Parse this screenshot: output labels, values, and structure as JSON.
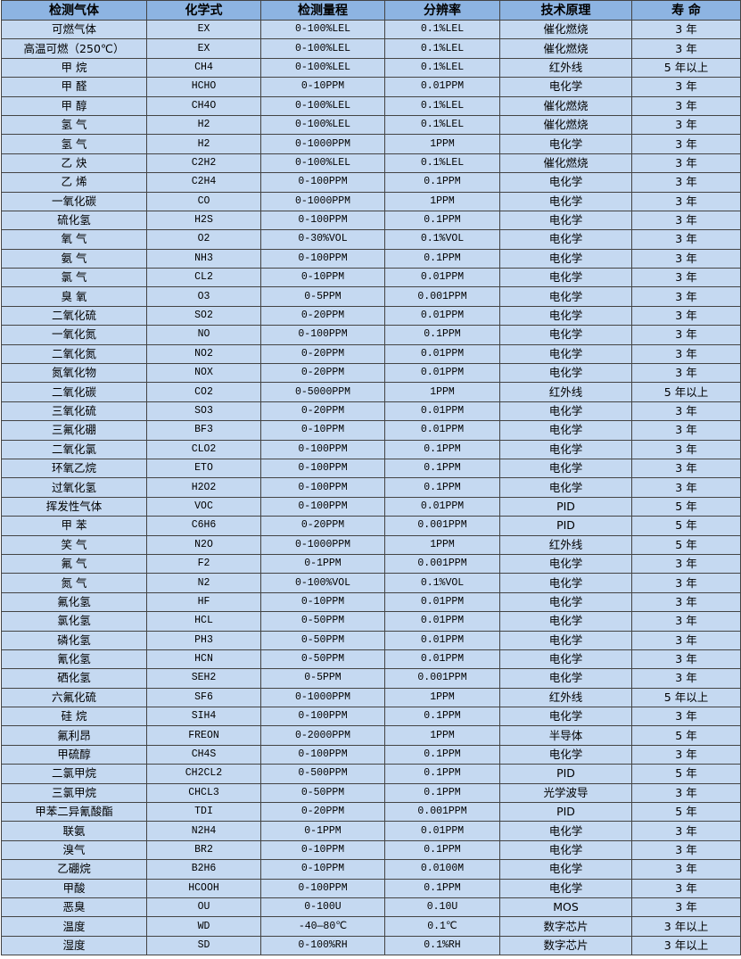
{
  "table": {
    "headers": [
      "检测气体",
      "化学式",
      "检测量程",
      "分辨率",
      "技术原理",
      "寿 命"
    ],
    "rows": [
      [
        "可燃气体",
        "EX",
        "0-100%LEL",
        "0.1%LEL",
        "催化燃烧",
        "3 年"
      ],
      [
        "高温可燃（250℃）",
        "EX",
        "0-100%LEL",
        "0.1%LEL",
        "催化燃烧",
        "3 年"
      ],
      [
        "甲 烷",
        "CH4",
        "0-100%LEL",
        "0.1%LEL",
        "红外线",
        "5 年以上"
      ],
      [
        "甲 醛",
        "HCHO",
        "0-10PPM",
        "0.01PPM",
        "电化学",
        "3 年"
      ],
      [
        "甲 醇",
        "CH4O",
        "0-100%LEL",
        "0.1%LEL",
        "催化燃烧",
        "3 年"
      ],
      [
        "氢 气",
        "H2",
        "0-100%LEL",
        "0.1%LEL",
        "催化燃烧",
        "3 年"
      ],
      [
        "氢 气",
        "H2",
        "0-1000PPM",
        "1PPM",
        "电化学",
        "3 年"
      ],
      [
        "乙 炔",
        "C2H2",
        "0-100%LEL",
        "0.1%LEL",
        "催化燃烧",
        "3 年"
      ],
      [
        "乙 烯",
        "C2H4",
        "0-100PPM",
        "0.1PPM",
        "电化学",
        "3 年"
      ],
      [
        "一氧化碳",
        "CO",
        "0-1000PPM",
        "1PPM",
        "电化学",
        "3 年"
      ],
      [
        "硫化氢",
        "H2S",
        "0-100PPM",
        "0.1PPM",
        "电化学",
        "3 年"
      ],
      [
        "氧 气",
        "O2",
        "0-30%VOL",
        "0.1%VOL",
        "电化学",
        "3 年"
      ],
      [
        "氨 气",
        "NH3",
        "0-100PPM",
        "0.1PPM",
        "电化学",
        "3 年"
      ],
      [
        "氯 气",
        "CL2",
        "0-10PPM",
        "0.01PPM",
        "电化学",
        "3 年"
      ],
      [
        "臭 氧",
        "O3",
        "0-5PPM",
        "0.001PPM",
        "电化学",
        "3 年"
      ],
      [
        "二氧化硫",
        "SO2",
        "0-20PPM",
        "0.01PPM",
        "电化学",
        "3 年"
      ],
      [
        "一氧化氮",
        "NO",
        "0-100PPM",
        "0.1PPM",
        "电化学",
        "3 年"
      ],
      [
        "二氧化氮",
        "NO2",
        "0-20PPM",
        "0.01PPM",
        "电化学",
        "3 年"
      ],
      [
        "氮氧化物",
        "NOX",
        "0-20PPM",
        "0.01PPM",
        "电化学",
        "3 年"
      ],
      [
        "二氧化碳",
        "CO2",
        "0-5000PPM",
        "1PPM",
        "红外线",
        "5 年以上"
      ],
      [
        "三氧化硫",
        "SO3",
        "0-20PPM",
        "0.01PPM",
        "电化学",
        "3 年"
      ],
      [
        "三氟化硼",
        "BF3",
        "0-10PPM",
        "0.01PPM",
        "电化学",
        "3 年"
      ],
      [
        "二氧化氯",
        "CLO2",
        "0-100PPM",
        "0.1PPM",
        "电化学",
        "3 年"
      ],
      [
        "环氧乙烷",
        "ETO",
        "0-100PPM",
        "0.1PPM",
        "电化学",
        "3 年"
      ],
      [
        "过氧化氢",
        "H2O2",
        "0-100PPM",
        "0.1PPM",
        "电化学",
        "3 年"
      ],
      [
        "挥发性气体",
        "VOC",
        "0-100PPM",
        "0.01PPM",
        "PID",
        "5 年"
      ],
      [
        "甲 苯",
        "C6H6",
        "0-20PPM",
        "0.001PPM",
        "PID",
        "5 年"
      ],
      [
        "笑 气",
        "N2O",
        "0-1000PPM",
        "1PPM",
        "红外线",
        "5 年"
      ],
      [
        "氟 气",
        "F2",
        "0-1PPM",
        "0.001PPM",
        "电化学",
        "3 年"
      ],
      [
        "氮 气",
        "N2",
        "0-100%VOL",
        "0.1%VOL",
        "电化学",
        "3 年"
      ],
      [
        "氟化氢",
        "HF",
        "0-10PPM",
        "0.01PPM",
        "电化学",
        "3 年"
      ],
      [
        "氯化氢",
        "HCL",
        "0-50PPM",
        "0.01PPM",
        "电化学",
        "3 年"
      ],
      [
        "磷化氢",
        "PH3",
        "0-50PPM",
        "0.01PPM",
        "电化学",
        "3 年"
      ],
      [
        "氰化氢",
        "HCN",
        "0-50PPM",
        "0.01PPM",
        "电化学",
        "3 年"
      ],
      [
        "硒化氢",
        "SEH2",
        "0-5PPM",
        "0.001PPM",
        "电化学",
        "3 年"
      ],
      [
        "六氟化硫",
        "SF6",
        "0-1000PPM",
        "1PPM",
        "红外线",
        "5 年以上"
      ],
      [
        "硅 烷",
        "SIH4",
        "0-100PPM",
        "0.1PPM",
        "电化学",
        "3 年"
      ],
      [
        "氟利昂",
        "FREON",
        "0-2000PPM",
        "1PPM",
        "半导体",
        "5 年"
      ],
      [
        "甲硫醇",
        "CH4S",
        "0-100PPM",
        "0.1PPM",
        "电化学",
        "3 年"
      ],
      [
        "二氯甲烷",
        "CH2CL2",
        "0-500PPM",
        "0.1PPM",
        "PID",
        "5 年"
      ],
      [
        "三氯甲烷",
        "CHCL3",
        "0-50PPM",
        "0.1PPM",
        "光学波导",
        "3 年"
      ],
      [
        "甲苯二异氰酸酯",
        "TDI",
        "0-20PPM",
        "0.001PPM",
        "PID",
        "5 年"
      ],
      [
        "联氨",
        "N2H4",
        "0-1PPM",
        "0.01PPM",
        "电化学",
        "3 年"
      ],
      [
        "溴气",
        "BR2",
        "0-10PPM",
        "0.1PPM",
        "电化学",
        "3 年"
      ],
      [
        "乙硼烷",
        "B2H6",
        "0-10PPM",
        "0.0100M",
        "电化学",
        "3 年"
      ],
      [
        "甲酸",
        "HCOOH",
        "0-100PPM",
        "0.1PPM",
        "电化学",
        "3 年"
      ],
      [
        "恶臭",
        "OU",
        "0-100U",
        "0.10U",
        "MOS",
        "3 年"
      ],
      [
        "温度",
        "WD",
        "-40—80℃",
        "0.1℃",
        "数字芯片",
        "3 年以上"
      ],
      [
        "湿度",
        "SD",
        "0-100%RH",
        "0.1%RH",
        "数字芯片",
        "3 年以上"
      ]
    ]
  },
  "colors": {
    "header_bg": "#8DB4E2",
    "row_bg": "#C5D9F1",
    "border": "#444444"
  }
}
